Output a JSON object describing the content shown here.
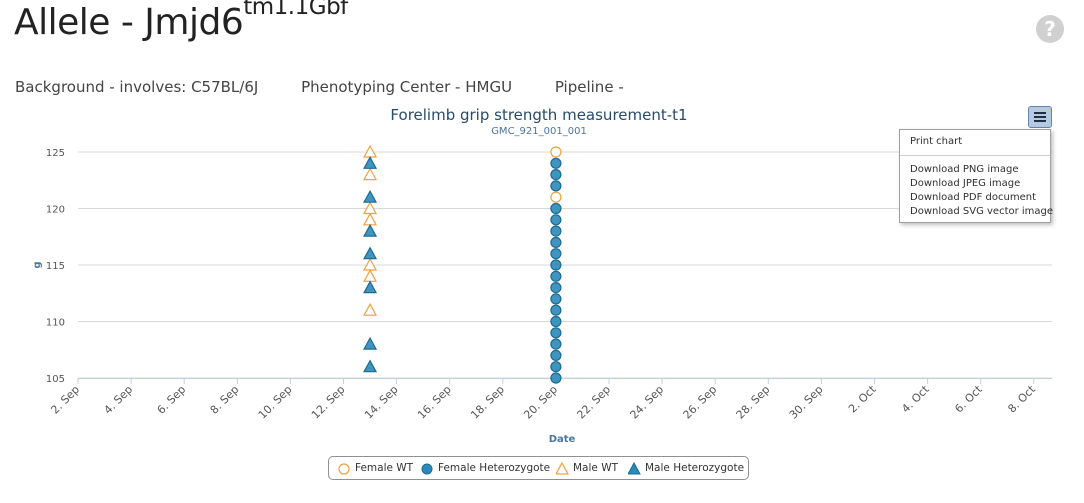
{
  "header": {
    "title_main": "Allele - Jmjd6",
    "title_sup": "tm1.1Gbf",
    "help_icon": "question-circle-icon"
  },
  "meta": {
    "background": "Background - involves: C57BL/6J",
    "center": "Phenotyping Center - HMGU",
    "pipeline": "Pipeline -"
  },
  "menu": {
    "icon": "hamburger-menu-icon",
    "items": [
      "Print chart",
      "Download PNG image",
      "Download JPEG image",
      "Download PDF document",
      "Download SVG vector image"
    ]
  },
  "chart_data": {
    "type": "scatter",
    "title": "Forelimb grip strength measurement-t1",
    "subtitle": "GMC_921_001_001",
    "xlabel": "Date",
    "ylabel": "g",
    "x_ticks": [
      "2. Sep",
      "4. Sep",
      "6. Sep",
      "8. Sep",
      "10. Sep",
      "12. Sep",
      "14. Sep",
      "16. Sep",
      "18. Sep",
      "20. Sep",
      "22. Sep",
      "24. Sep",
      "26. Sep",
      "28. Sep",
      "30. Sep",
      "2. Oct",
      "4. Oct",
      "6. Oct",
      "8. Oct"
    ],
    "y_ticks": [
      105,
      110,
      115,
      120,
      125
    ],
    "ylim": [
      105,
      125
    ],
    "grid": true,
    "legend_position": "bottom",
    "series": [
      {
        "name": "Female WT",
        "marker": "circle-open",
        "color": "#f0a040",
        "date": "20. Sep",
        "values": [
          125,
          121
        ]
      },
      {
        "name": "Female Heterozygote",
        "marker": "circle-filled",
        "color": "#2a8ab8",
        "date": "20. Sep",
        "values": [
          124,
          123,
          122,
          120,
          119,
          118,
          117,
          116,
          115,
          114,
          113,
          112,
          111,
          110,
          109,
          108,
          107,
          106,
          105
        ]
      },
      {
        "name": "Male WT",
        "marker": "triangle-open",
        "color": "#f0a040",
        "date": "13. Sep",
        "values": [
          125,
          123,
          120,
          119,
          115,
          114,
          111
        ]
      },
      {
        "name": "Male Heterozygote",
        "marker": "triangle-filled",
        "color": "#2a8ab8",
        "date": "13. Sep",
        "values": [
          124,
          121,
          118,
          116,
          113,
          108,
          106
        ]
      }
    ]
  }
}
